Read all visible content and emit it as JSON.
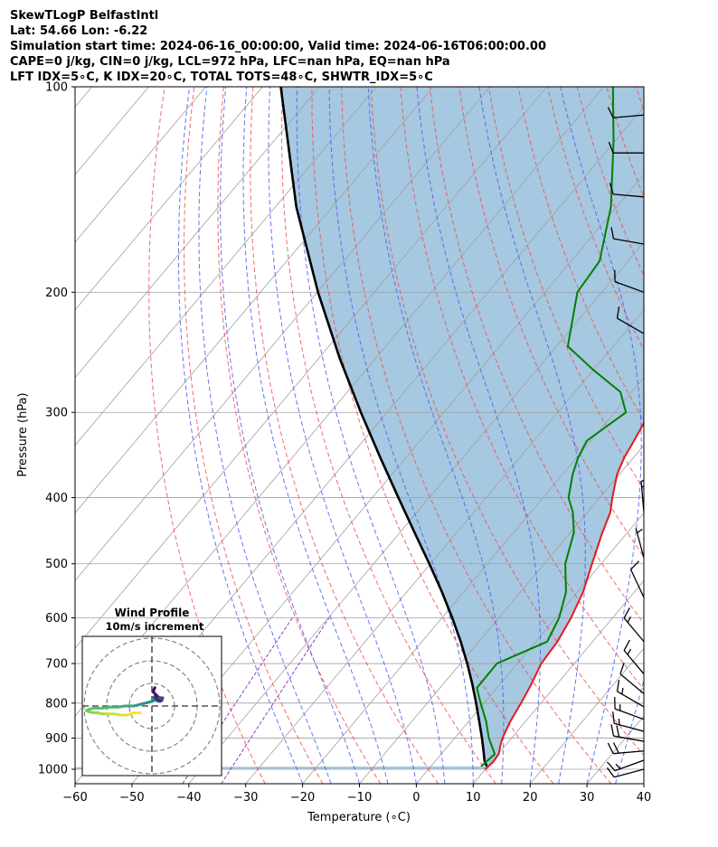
{
  "header": {
    "line1": "SkewTLogP BelfastIntl",
    "line2": "Lat: 54.66   Lon: -6.22",
    "line3": "Simulation start time: 2024-06-16_00:00:00, Valid time: 2024-06-16T06:00:00.00",
    "line4": "CAPE=0 j/kg, CIN=0 j/kg, LCL=972 hPa, LFC=nan hPa, EQ=nan hPa",
    "line5": "LFT IDX=5∘C, K IDX=20∘C, TOTAL TOTS=48∘C, SHWTR_IDX=5∘C"
  },
  "colors": {
    "temperature": "#e41a1c",
    "dewpoint": "#008000",
    "parcel": "#000000",
    "cape_fill": "#a6c8e0",
    "dry_adiabat": "#f05050",
    "moist_adiabat": "#4a5ef0",
    "mixing_ratio": "#9040c0",
    "isotherm": "#a0a0a0",
    "isobar": "#a0a0a0"
  },
  "chart_data": [
    {
      "type": "line",
      "name": "skew-t",
      "xlabel": "Temperature (∘C)",
      "ylabel": "Pressure (hPa)",
      "xlim": [
        -60,
        40
      ],
      "ylim": [
        1050,
        100
      ],
      "y_scale": "log",
      "grid": true,
      "xticks": [
        -60,
        -50,
        -40,
        -30,
        -20,
        -10,
        0,
        10,
        20,
        30,
        40
      ],
      "yticks": [
        1000,
        900,
        800,
        700,
        600,
        500,
        400,
        300,
        200,
        100
      ],
      "series": [
        {
          "key": "temperature",
          "points": [
            [
              1000,
              10.0
            ],
            [
              975,
              10.3
            ],
            [
              950,
              10.1
            ],
            [
              925,
              9.2
            ],
            [
              900,
              8.4
            ],
            [
              850,
              7.3
            ],
            [
              800,
              6.5
            ],
            [
              750,
              5.5
            ],
            [
              700,
              4.2
            ],
            [
              650,
              3.8
            ],
            [
              600,
              2.7
            ],
            [
              550,
              1.0
            ],
            [
              500,
              -1.6
            ],
            [
              450,
              -4.4
            ],
            [
              420,
              -6.0
            ],
            [
              400,
              -7.8
            ],
            [
              370,
              -10.4
            ],
            [
              350,
              -11.6
            ],
            [
              330,
              -12.4
            ],
            [
              300,
              -13.8
            ],
            [
              290,
              -14.4
            ],
            [
              250,
              -14.5
            ],
            [
              220,
              -16.0
            ],
            [
              200,
              -19.6
            ],
            [
              180,
              -23.4
            ],
            [
              160,
              -28.6
            ],
            [
              140,
              -34.6
            ],
            [
              120,
              -41.6
            ],
            [
              100,
              -53.5
            ]
          ]
        },
        {
          "key": "dewpoint",
          "points": [
            [
              990,
              8.8
            ],
            [
              950,
              9.4
            ],
            [
              900,
              6.0
            ],
            [
              850,
              3.0
            ],
            [
              800,
              -0.6
            ],
            [
              760,
              -3.5
            ],
            [
              700,
              -3.6
            ],
            [
              650,
              2.0
            ],
            [
              600,
              0.6
            ],
            [
              550,
              -2.0
            ],
            [
              500,
              -6.3
            ],
            [
              450,
              -9.4
            ],
            [
              420,
              -12.6
            ],
            [
              400,
              -15.5
            ],
            [
              370,
              -18.2
            ],
            [
              350,
              -19.7
            ],
            [
              330,
              -20.7
            ],
            [
              300,
              -18.0
            ],
            [
              280,
              -22.0
            ],
            [
              260,
              -30.0
            ],
            [
              240,
              -38.0
            ],
            [
              200,
              -44.3
            ],
            [
              180,
              -45.0
            ],
            [
              150,
              -51.0
            ],
            [
              120,
              -60.3
            ],
            [
              100,
              -68.4
            ]
          ]
        },
        {
          "key": "parcel",
          "points": [
            [
              990,
              9.8
            ],
            [
              972,
              8.6
            ],
            [
              950,
              7.5
            ],
            [
              900,
              4.8
            ],
            [
              850,
              1.8
            ],
            [
              800,
              -1.4
            ],
            [
              750,
              -4.9
            ],
            [
              700,
              -8.8
            ],
            [
              650,
              -13.2
            ],
            [
              600,
              -18.2
            ],
            [
              550,
              -23.8
            ],
            [
              500,
              -30.2
            ],
            [
              450,
              -37.4
            ],
            [
              400,
              -45.4
            ],
            [
              350,
              -54.4
            ],
            [
              300,
              -64.6
            ],
            [
              250,
              -76.3
            ],
            [
              200,
              -89.9
            ],
            [
              150,
              -106.3
            ],
            [
              100,
              -126.8
            ]
          ]
        }
      ],
      "barbs": [
        {
          "p": 1000,
          "speed": 10,
          "dir": 255
        },
        {
          "p": 970,
          "speed": 15,
          "dir": 250
        },
        {
          "p": 940,
          "speed": 20,
          "dir": 265
        },
        {
          "p": 910,
          "speed": 20,
          "dir": 280
        },
        {
          "p": 880,
          "speed": 15,
          "dir": 285
        },
        {
          "p": 845,
          "speed": 15,
          "dir": 290
        },
        {
          "p": 810,
          "speed": 15,
          "dir": 300
        },
        {
          "p": 775,
          "speed": 10,
          "dir": 310
        },
        {
          "p": 725,
          "speed": 15,
          "dir": 320
        },
        {
          "p": 650,
          "speed": 15,
          "dir": 320
        },
        {
          "p": 560,
          "speed": 10,
          "dir": 335
        },
        {
          "p": 490,
          "speed": 5,
          "dir": 345
        },
        {
          "p": 420,
          "speed": 15,
          "dir": 355
        },
        {
          "p": 350,
          "speed": 10,
          "dir": 20
        },
        {
          "p": 300,
          "speed": 10,
          "dir": 40
        },
        {
          "p": 265,
          "speed": 5,
          "dir": 5
        },
        {
          "p": 230,
          "speed": 10,
          "dir": 300
        },
        {
          "p": 200,
          "speed": 10,
          "dir": 290
        },
        {
          "p": 170,
          "speed": 10,
          "dir": 280
        },
        {
          "p": 145,
          "speed": 10,
          "dir": 275
        },
        {
          "p": 125,
          "speed": 10,
          "dir": 270
        },
        {
          "p": 110,
          "speed": 10,
          "dir": 265
        }
      ]
    },
    {
      "type": "line",
      "name": "hodograph",
      "title": "Wind Profile",
      "subtitle": "10m/s increment",
      "ring_increment_ms": 10,
      "rings": 3,
      "uv_points": [
        [
          -5,
          -3
        ],
        [
          -8,
          -3
        ],
        [
          -11,
          -4
        ],
        [
          -14,
          -4
        ],
        [
          -17,
          -3.5
        ],
        [
          -20,
          -3.5
        ],
        [
          -22,
          -3.5
        ],
        [
          -24,
          -3
        ],
        [
          -26,
          -3
        ],
        [
          -28,
          -2.5
        ],
        [
          -29,
          -2
        ],
        [
          -28,
          -1.5
        ],
        [
          -26,
          -1
        ],
        [
          -24,
          -1
        ],
        [
          -22,
          -1
        ],
        [
          -19,
          -0.5
        ],
        [
          -17,
          -0.5
        ],
        [
          -15,
          -0.5
        ],
        [
          -12,
          0
        ],
        [
          -10,
          0
        ],
        [
          -8,
          0
        ],
        [
          -6,
          0.5
        ],
        [
          -4,
          1
        ],
        [
          -2,
          1.5
        ],
        [
          0,
          2
        ],
        [
          1,
          2.5
        ],
        [
          2,
          2.5
        ],
        [
          3,
          2
        ],
        [
          3.5,
          2.2
        ],
        [
          2.5,
          2.8
        ],
        [
          1.5,
          3.0
        ],
        [
          0.8,
          3.8
        ],
        [
          1.5,
          4.6
        ],
        [
          2.5,
          4.2
        ],
        [
          3.5,
          3.7
        ],
        [
          4.8,
          3.6
        ],
        [
          3.8,
          3.2
        ],
        [
          4.5,
          2.6
        ],
        [
          3.8,
          2.1
        ],
        [
          2.8,
          2.5
        ],
        [
          1.8,
          3.4
        ],
        [
          1.8,
          4.0
        ],
        [
          2.4,
          4.4
        ],
        [
          1.6,
          5.2
        ],
        [
          0.6,
          6.2
        ],
        [
          0.9,
          7.2
        ],
        [
          1.3,
          8.1
        ]
      ]
    }
  ]
}
